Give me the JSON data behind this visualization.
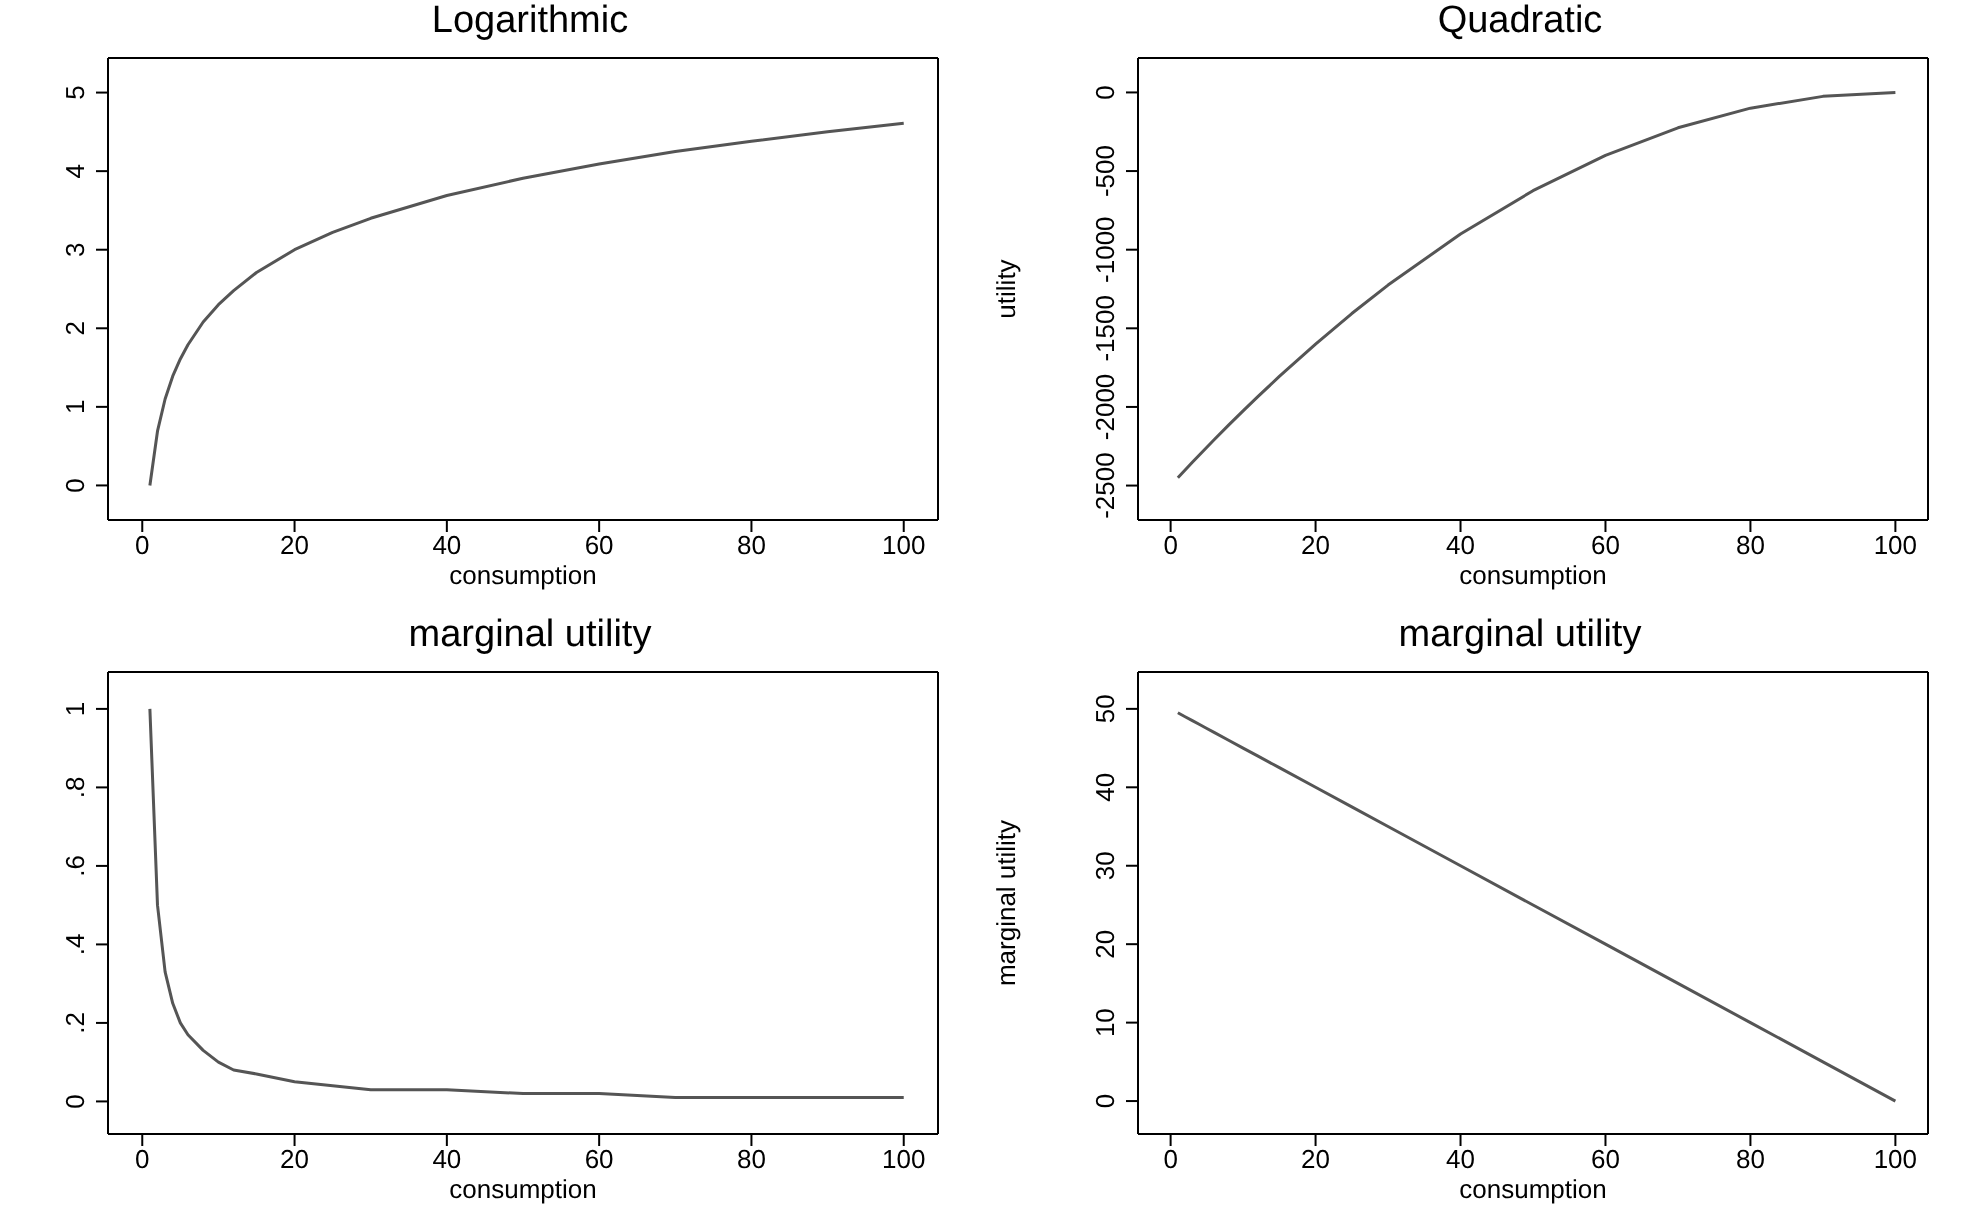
{
  "chart_data": [
    {
      "type": "line",
      "title": "Logarithmic",
      "xlabel": "consumption",
      "x": [
        1,
        2,
        3,
        4,
        5,
        6,
        8,
        10,
        12,
        15,
        20,
        25,
        30,
        40,
        50,
        60,
        70,
        80,
        90,
        100
      ],
      "series": [
        {
          "color": "#555555",
          "values": [
            0,
            0.69,
            1.1,
            1.39,
            1.61,
            1.79,
            2.08,
            2.3,
            2.48,
            2.71,
            3,
            3.22,
            3.4,
            3.69,
            3.91,
            4.09,
            4.25,
            4.38,
            4.5,
            4.61
          ]
        }
      ],
      "xlim": [
        -4.5,
        104.5
      ],
      "xticks": [
        0,
        20,
        40,
        60,
        80,
        100
      ],
      "ylim": [
        -0.44,
        5.44
      ],
      "yticks": [
        0,
        1,
        2,
        3,
        4,
        5
      ]
    },
    {
      "type": "line",
      "title": "Quadratic",
      "xlabel": "consumption",
      "ylabel": "utility",
      "x": [
        1,
        2,
        3,
        4,
        5,
        6,
        8,
        10,
        12,
        15,
        20,
        25,
        30,
        40,
        50,
        60,
        70,
        80,
        90,
        100
      ],
      "series": [
        {
          "color": "#555555",
          "values": [
            -2450,
            -2401,
            -2352,
            -2304,
            -2256,
            -2209,
            -2116,
            -2025,
            -1936,
            -1806,
            -1600,
            -1406,
            -1225,
            -900,
            -625,
            -400,
            -225,
            -100,
            -25,
            0
          ]
        }
      ],
      "xlim": [
        -4.5,
        104.5
      ],
      "xticks": [
        0,
        20,
        40,
        60,
        80,
        100
      ],
      "ylim": [
        -2719,
        219
      ],
      "yticks": [
        -2500,
        -2000,
        -1500,
        -1000,
        -500,
        0
      ]
    },
    {
      "type": "line",
      "title": "marginal utility",
      "xlabel": "consumption",
      "x": [
        1,
        2,
        3,
        4,
        5,
        6,
        8,
        10,
        12,
        15,
        20,
        25,
        30,
        40,
        50,
        60,
        70,
        80,
        90,
        100
      ],
      "series": [
        {
          "color": "#555555",
          "values": [
            1,
            0.5,
            0.33,
            0.25,
            0.2,
            0.17,
            0.13,
            0.1,
            0.08,
            0.07,
            0.05,
            0.04,
            0.03,
            0.03,
            0.02,
            0.02,
            0.01,
            0.01,
            0.01,
            0.01
          ]
        }
      ],
      "xlim": [
        -4.5,
        104.5
      ],
      "xticks": [
        0,
        20,
        40,
        60,
        80,
        100
      ],
      "ylim": [
        -0.083,
        1.094
      ],
      "yticks": [
        0,
        {
          "value": 0.2,
          "label": ".2"
        },
        {
          "value": 0.4,
          "label": ".4"
        },
        {
          "value": 0.6,
          "label": ".6"
        },
        {
          "value": 0.8,
          "label": ".8"
        },
        1
      ]
    },
    {
      "type": "line",
      "title": "marginal utility",
      "xlabel": "consumption",
      "ylabel": "marginal utility",
      "x": [
        1,
        2,
        3,
        4,
        5,
        6,
        8,
        10,
        12,
        15,
        20,
        25,
        30,
        40,
        50,
        60,
        70,
        80,
        90,
        100
      ],
      "series": [
        {
          "color": "#555555",
          "values": [
            49.5,
            49,
            48.5,
            48,
            47.5,
            47,
            46,
            45,
            44,
            42.5,
            40,
            37.5,
            35,
            30,
            25,
            20,
            15,
            10,
            5,
            0
          ]
        }
      ],
      "xlim": [
        -4.5,
        104.5
      ],
      "xticks": [
        0,
        20,
        40,
        60,
        80,
        100
      ],
      "ylim": [
        -4.2,
        54.7
      ],
      "yticks": [
        0,
        10,
        20,
        30,
        40,
        50
      ]
    }
  ]
}
